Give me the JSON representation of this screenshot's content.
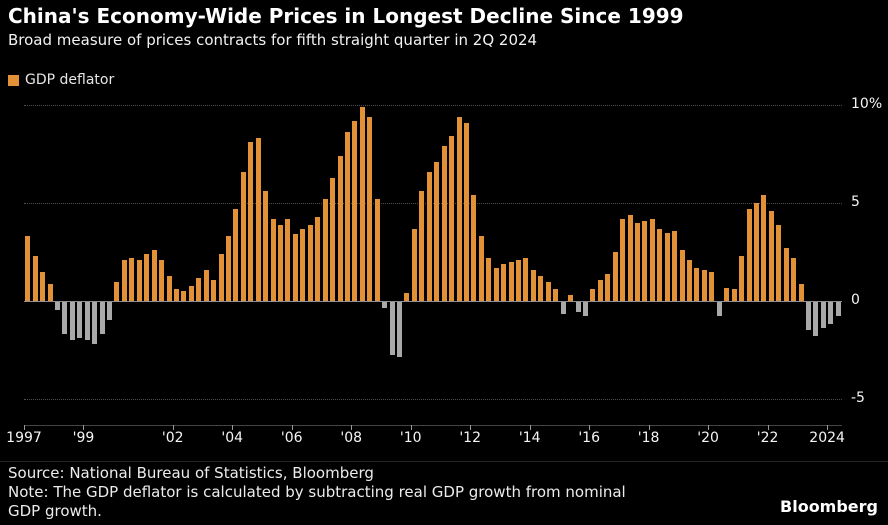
{
  "header": {
    "title": "China's Economy-Wide Prices in Longest Decline Since 1999",
    "subtitle": "Broad measure of prices contracts for fifth straight quarter in 2Q 2024"
  },
  "legend": {
    "label": "GDP deflator",
    "color": "#E39136"
  },
  "chart_data": {
    "type": "bar",
    "title": "China's Economy-Wide Prices in Longest Decline Since 1999",
    "subtitle": "Broad measure of prices contracts for fifth straight quarter in 2Q 2024",
    "series_name": "GDP deflator",
    "x_unit": "quarter",
    "x_start": "1997-Q1",
    "x_end": "2024-Q2",
    "xlabel": "",
    "ylabel": "",
    "y_unit": "%",
    "ylim": [
      -6.3,
      10.5
    ],
    "grid": "dotted-horizontal",
    "legend_position": "top-left",
    "axis_side": "right",
    "color_positive": "#E39136",
    "color_negative": "#A9A9A9",
    "values": [
      3.3,
      2.3,
      1.5,
      0.9,
      -0.4,
      -1.6,
      -1.9,
      -1.8,
      -1.9,
      -2.1,
      -1.6,
      -0.9,
      1.0,
      2.1,
      2.2,
      2.1,
      2.4,
      2.6,
      2.1,
      1.3,
      0.6,
      0.5,
      0.8,
      1.2,
      1.6,
      1.1,
      2.4,
      3.3,
      4.7,
      6.6,
      8.1,
      8.3,
      5.6,
      4.2,
      3.9,
      4.2,
      3.4,
      3.7,
      3.9,
      4.3,
      5.2,
      6.3,
      7.4,
      8.6,
      9.2,
      9.9,
      9.4,
      5.2,
      -0.3,
      -2.7,
      -2.8,
      0.4,
      3.7,
      5.6,
      6.6,
      7.1,
      7.9,
      8.4,
      9.4,
      9.1,
      5.4,
      3.3,
      2.2,
      1.7,
      1.9,
      2.0,
      2.1,
      2.2,
      1.6,
      1.3,
      1.0,
      0.6,
      -0.6,
      0.3,
      -0.5,
      -0.7,
      0.6,
      1.1,
      1.4,
      2.5,
      4.2,
      4.4,
      4.0,
      4.1,
      4.2,
      3.7,
      3.5,
      3.6,
      2.6,
      2.1,
      1.7,
      1.6,
      1.5,
      -0.7,
      0.7,
      0.6,
      2.3,
      4.7,
      5.0,
      5.4,
      4.6,
      3.9,
      2.7,
      2.2,
      0.9,
      -1.4,
      -1.7,
      -1.3,
      -1.1,
      -0.7
    ],
    "yticks": [
      {
        "value": 10,
        "label": "10%"
      },
      {
        "value": 5,
        "label": "5"
      },
      {
        "value": 0,
        "label": "0"
      },
      {
        "value": -5,
        "label": "-5"
      }
    ],
    "xticks": [
      {
        "i": 0,
        "label": "1997"
      },
      {
        "i": 8,
        "label": "'99"
      },
      {
        "i": 20,
        "label": "'02"
      },
      {
        "i": 28,
        "label": "'04"
      },
      {
        "i": 36,
        "label": "'06"
      },
      {
        "i": 44,
        "label": "'08"
      },
      {
        "i": 52,
        "label": "'10"
      },
      {
        "i": 60,
        "label": "'12"
      },
      {
        "i": 68,
        "label": "'14"
      },
      {
        "i": 76,
        "label": "'16"
      },
      {
        "i": 84,
        "label": "'18"
      },
      {
        "i": 92,
        "label": "'20"
      },
      {
        "i": 100,
        "label": "'22"
      },
      {
        "i": 108,
        "label": "2024"
      }
    ]
  },
  "footer": {
    "source": "Source: National Bureau of Statistics, Bloomberg",
    "note_line1": "Note: The GDP deflator is calculated by subtracting real GDP growth from nominal",
    "note_line2": "GDP growth.",
    "brand": "Bloomberg"
  }
}
